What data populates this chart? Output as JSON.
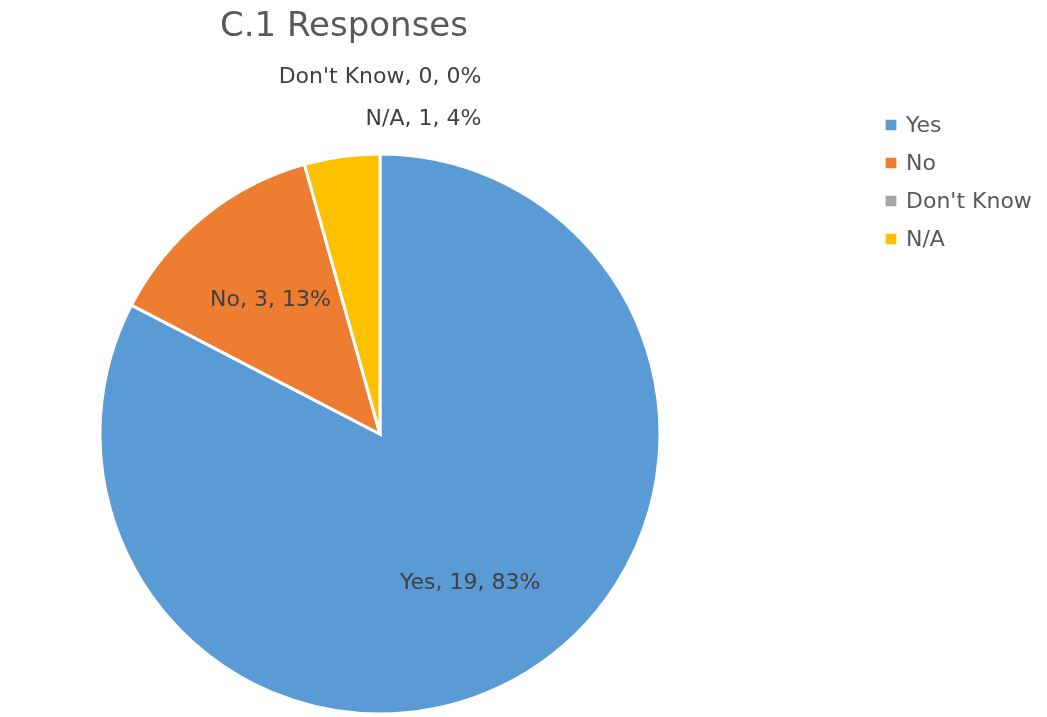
{
  "chart_data": {
    "type": "pie",
    "title": "C.1 Responses",
    "categories": [
      "Yes",
      "No",
      "Don't Know",
      "N/A"
    ],
    "values": [
      19,
      3,
      0,
      1
    ],
    "colors": [
      "#5b9bd5",
      "#ed7d31",
      "#a5a5a5",
      "#ffc000"
    ],
    "value_labels": [
      "Yes, 19, 83%",
      "No, 3, 13%",
      "Don't Know, 0, 0%",
      "N/A, 1, 4%"
    ],
    "legend": "right"
  }
}
